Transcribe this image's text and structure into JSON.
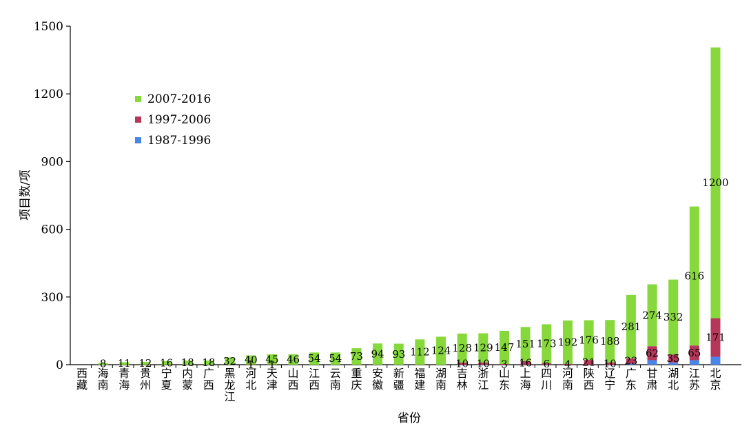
{
  "chart_data": {
    "type": "bar",
    "stacked": true,
    "xlabel": "省份",
    "ylabel": "项目数/项",
    "ylim": [
      0,
      1500
    ],
    "yticks": [
      0,
      300,
      600,
      900,
      1200,
      1500
    ],
    "grid": false,
    "legend_position": "upper-left",
    "categories": [
      "西藏",
      "海南",
      "青海",
      "贵州",
      "宁夏",
      "内蒙",
      "广西",
      "黑龙江",
      "河北",
      "天津",
      "山西",
      "江西",
      "云南",
      "重庆",
      "安徽",
      "新疆",
      "福建",
      "湖南",
      "吉林",
      "浙江",
      "山东",
      "上海",
      "四川",
      "河南",
      "陕西",
      "辽宁",
      "广东",
      "甘肃",
      "湖北",
      "江苏",
      "北京"
    ],
    "series": [
      {
        "name": "1987-1996",
        "color": "#4a86e8",
        "values": [
          0,
          0,
          0,
          0,
          0,
          0,
          0,
          0,
          0,
          0,
          0,
          0,
          0,
          0,
          0,
          0,
          0,
          0,
          0,
          0,
          0,
          0,
          0,
          0,
          0,
          0,
          5,
          20,
          10,
          20,
          35
        ],
        "labels": [
          "",
          "",
          "",
          "",
          "",
          "",
          "",
          "",
          "",
          "",
          "",
          "",
          "",
          "",
          "",
          "",
          "",
          "",
          "",
          "",
          "",
          "",
          "",
          "",
          "",
          "",
          "",
          "",
          "",
          "",
          ""
        ]
      },
      {
        "name": "1997-2006",
        "color": "#b5375a",
        "values": [
          0,
          0,
          0,
          0,
          0,
          0,
          0,
          0,
          1,
          1,
          0,
          0,
          0,
          0,
          0,
          0,
          0,
          0,
          10,
          10,
          3,
          16,
          6,
          4,
          21,
          10,
          23,
          62,
          35,
          65,
          171
        ],
        "labels": [
          "",
          "",
          "",
          "",
          "",
          "",
          "",
          "",
          "1",
          "1",
          "",
          "",
          "",
          "",
          "",
          "",
          "",
          "",
          "10",
          "10",
          "3",
          "16",
          "6",
          "4",
          "21",
          "10",
          "23",
          "62",
          "35",
          "65",
          "171"
        ]
      },
      {
        "name": "2007-2016",
        "color": "#86d83b",
        "values": [
          0,
          8,
          11,
          12,
          16,
          18,
          18,
          32,
          40,
          45,
          46,
          54,
          54,
          73,
          94,
          93,
          112,
          124,
          128,
          129,
          147,
          151,
          173,
          192,
          176,
          188,
          281,
          274,
          332,
          616,
          1200
        ],
        "labels": [
          "",
          "8",
          "11",
          "12",
          "16",
          "18",
          "18",
          "32",
          "40",
          "45",
          "46",
          "54",
          "54",
          "73",
          "94",
          "93",
          "112",
          "124",
          "128",
          "129",
          "147",
          "151",
          "173",
          "192",
          "176",
          "188",
          "281",
          "274",
          "332",
          "616",
          "1200"
        ]
      }
    ]
  }
}
